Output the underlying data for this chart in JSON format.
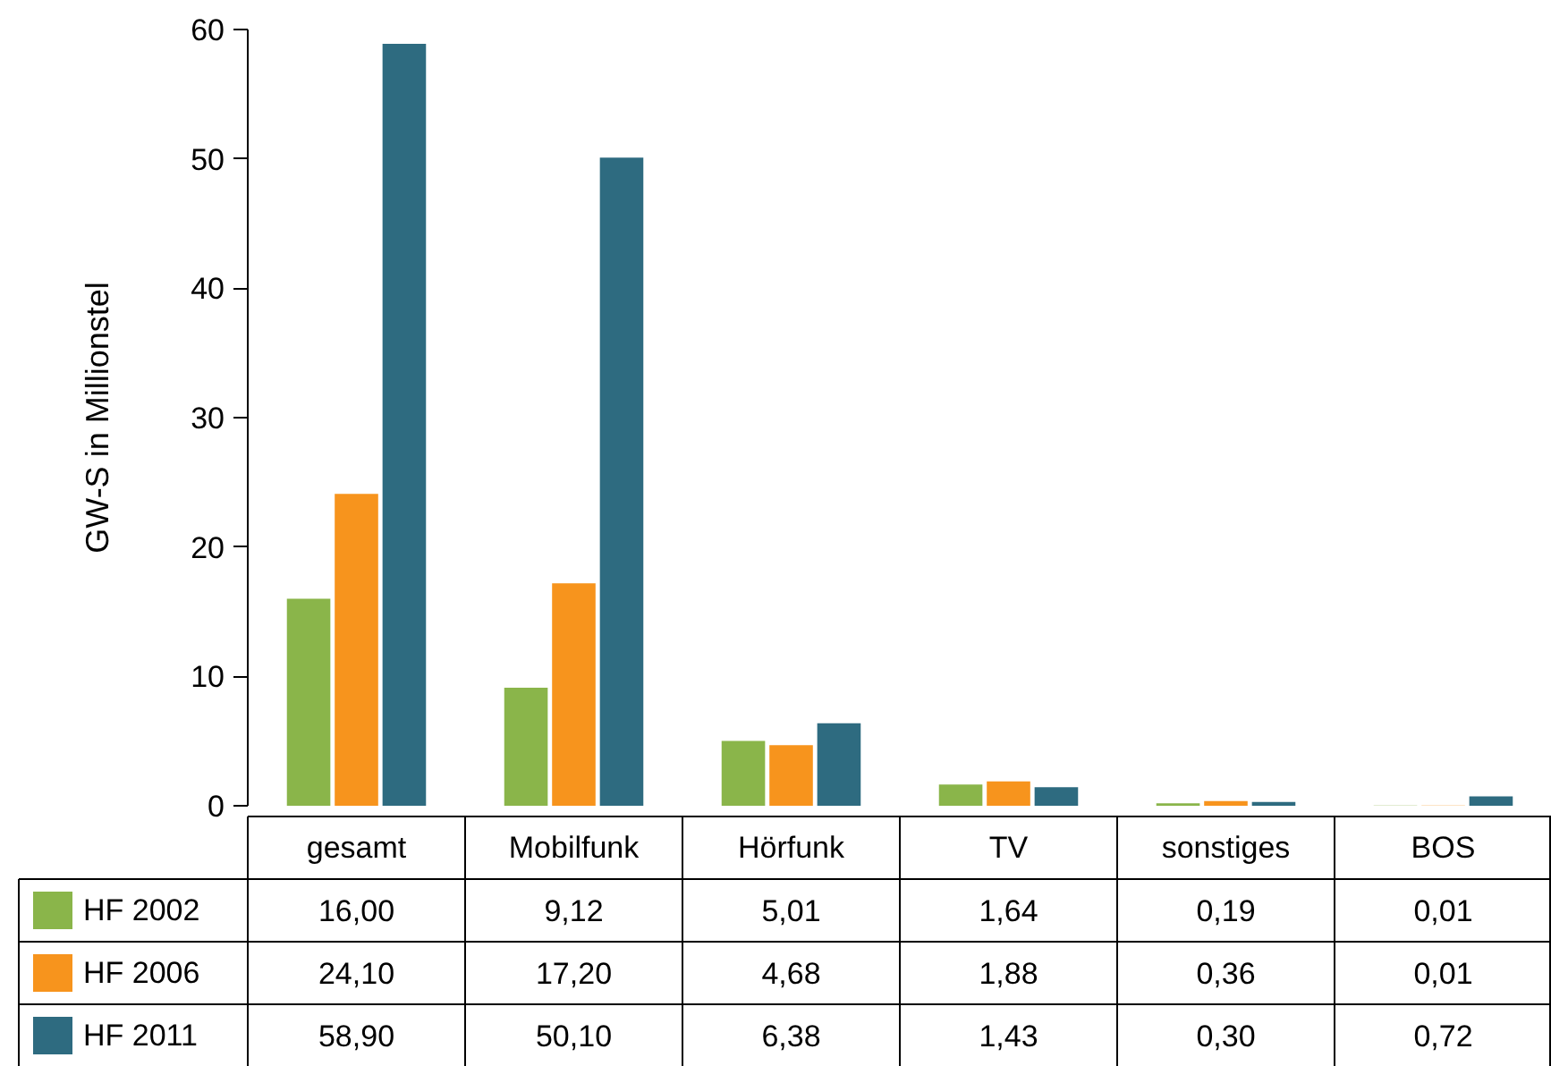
{
  "chart_data": {
    "type": "bar",
    "ylabel": "GW-S in Millionstel",
    "categories": [
      "gesamt",
      "Mobilfunk",
      "Hörfunk",
      "TV",
      "sonstiges",
      "BOS"
    ],
    "series": [
      {
        "name": "HF 2002",
        "color": "#8ab54a",
        "values": [
          16.0,
          9.12,
          5.01,
          1.64,
          0.19,
          0.01
        ],
        "value_labels": [
          "16,00",
          "9,12",
          "5,01",
          "1,64",
          "0,19",
          "0,01"
        ]
      },
      {
        "name": "HF 2006",
        "color": "#f7941d",
        "values": [
          24.1,
          17.2,
          4.68,
          1.88,
          0.36,
          0.01
        ],
        "value_labels": [
          "24,10",
          "17,20",
          "4,68",
          "1,88",
          "0,36",
          "0,01"
        ]
      },
      {
        "name": "HF 2011",
        "color": "#2e6b80",
        "values": [
          58.9,
          50.1,
          6.38,
          1.43,
          0.3,
          0.72
        ],
        "value_labels": [
          "58,90",
          "50,10",
          "6,38",
          "1,43",
          "0,30",
          "0,72"
        ]
      }
    ],
    "ylim": [
      0,
      60
    ],
    "yticks": [
      0,
      10,
      20,
      30,
      40,
      50,
      60
    ],
    "grid": false,
    "legend": "bottom left",
    "tick_labels": "y"
  }
}
